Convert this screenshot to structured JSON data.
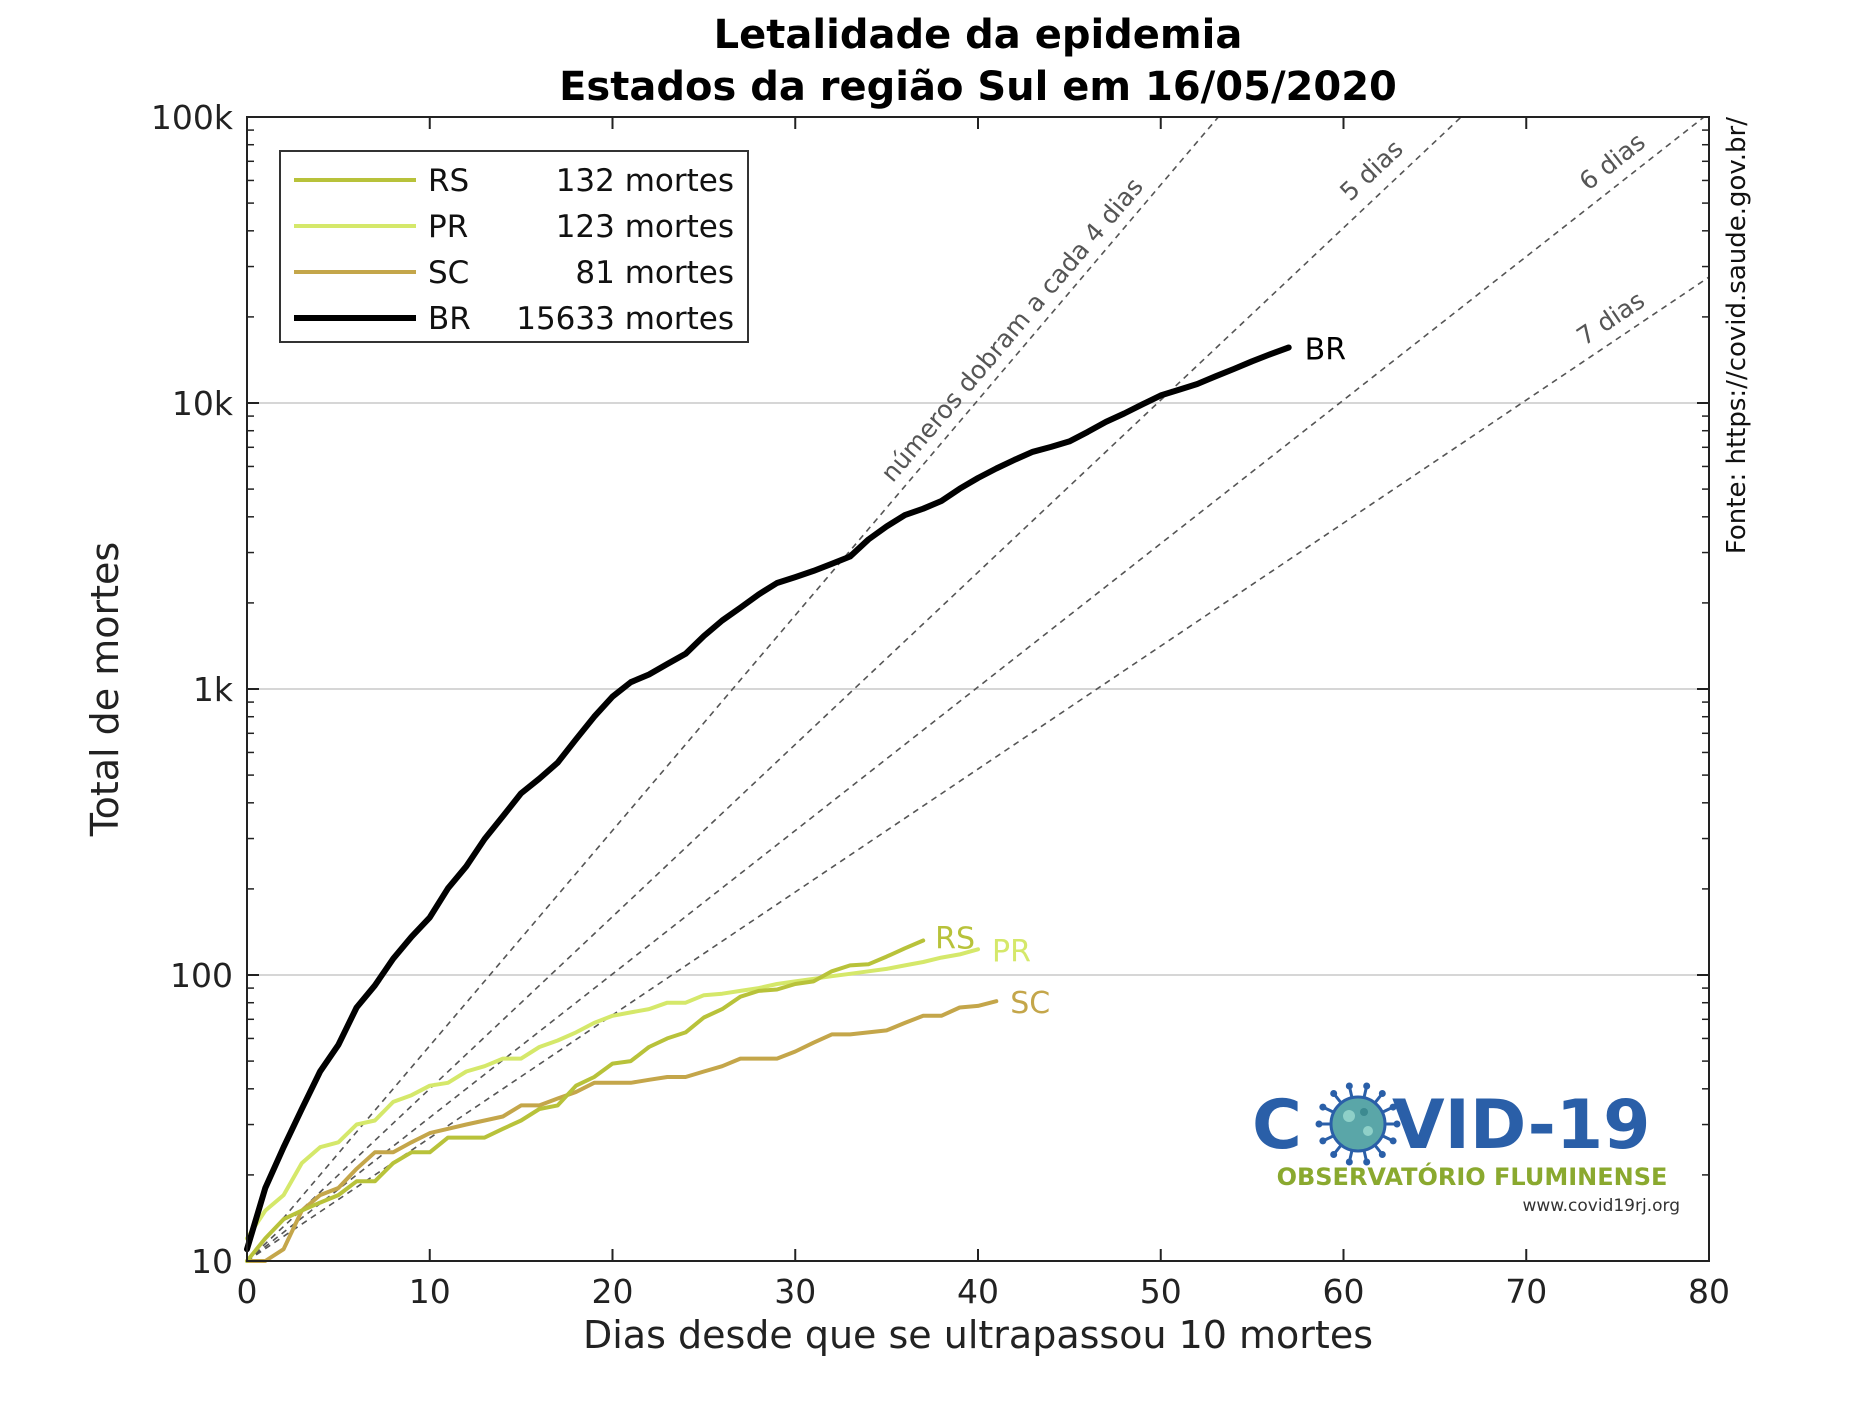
{
  "chart_data": {
    "type": "line",
    "title": [
      "Letalidade da epidemia",
      "Estados da região Sul em 16/05/2020"
    ],
    "xlabel": "Dias desde que se ultrapassou 10 mortes",
    "ylabel": "Total de mortes",
    "xlim": [
      0,
      80
    ],
    "ylim": [
      10,
      100000
    ],
    "yscale": "log",
    "x_ticks": [
      "0",
      "10",
      "20",
      "30",
      "40",
      "50",
      "60",
      "70",
      "80"
    ],
    "x_tick_values": [
      0,
      10,
      20,
      30,
      40,
      50,
      60,
      70,
      80
    ],
    "y_ticks": [
      "10",
      "100",
      "1k",
      "10k",
      "100k"
    ],
    "y_tick_values": [
      10,
      100,
      1000,
      10000,
      100000
    ],
    "grid": "horizontal major",
    "legend_position": "top-left",
    "series": [
      {
        "name": "RS",
        "legend_value": "132 mortes",
        "end_label": "RS",
        "color": "#b8c23a",
        "x": [
          0,
          1,
          2,
          3,
          4,
          5,
          6,
          7,
          8,
          9,
          10,
          11,
          12,
          13,
          14,
          15,
          16,
          17,
          18,
          19,
          20,
          21,
          22,
          23,
          24,
          25,
          26,
          27,
          28,
          29,
          30,
          31,
          32,
          33,
          34,
          35,
          36,
          37
        ],
        "y": [
          10,
          12,
          14,
          15,
          16,
          17,
          19,
          19,
          22,
          24,
          24,
          27,
          27,
          27,
          29,
          31,
          34,
          35,
          41,
          44,
          49,
          50,
          56,
          60,
          63,
          71,
          76,
          84,
          88,
          89,
          93,
          95,
          103,
          108,
          109,
          116,
          124,
          132
        ]
      },
      {
        "name": "PR",
        "legend_value": "123 mortes",
        "end_label": "PR",
        "color": "#d5e86a",
        "x": [
          0,
          1,
          2,
          3,
          4,
          5,
          6,
          7,
          8,
          9,
          10,
          11,
          12,
          13,
          14,
          15,
          16,
          17,
          18,
          19,
          20,
          21,
          22,
          23,
          24,
          25,
          26,
          27,
          28,
          29,
          30,
          31,
          32,
          33,
          34,
          35,
          36,
          37,
          38,
          39,
          40
        ],
        "y": [
          12,
          15,
          17,
          22,
          25,
          26,
          30,
          31,
          36,
          38,
          41,
          42,
          46,
          48,
          51,
          51,
          56,
          59,
          63,
          68,
          72,
          74,
          76,
          80,
          80,
          85,
          86,
          88,
          90,
          93,
          95,
          97,
          99,
          101,
          103,
          105,
          108,
          111,
          115,
          118,
          123
        ]
      },
      {
        "name": "SC",
        "legend_value": "81 mortes",
        "end_label": "SC",
        "color": "#c4a64a",
        "x": [
          0,
          1,
          2,
          3,
          4,
          5,
          6,
          7,
          8,
          9,
          10,
          11,
          12,
          13,
          14,
          15,
          16,
          17,
          18,
          19,
          20,
          21,
          22,
          23,
          24,
          25,
          26,
          27,
          28,
          29,
          30,
          31,
          32,
          33,
          34,
          35,
          36,
          37,
          38,
          39,
          40,
          41
        ],
        "y": [
          10,
          10,
          11,
          15,
          17,
          18,
          21,
          24,
          24,
          26,
          28,
          29,
          30,
          31,
          32,
          35,
          35,
          37,
          39,
          42,
          42,
          42,
          43,
          44,
          44,
          46,
          48,
          51,
          51,
          51,
          54,
          58,
          62,
          62,
          63,
          64,
          68,
          72,
          72,
          77,
          78,
          81
        ]
      },
      {
        "name": "BR",
        "legend_value": "15633 mortes",
        "end_label": "BR",
        "color": "#000000",
        "x": [
          0,
          1,
          2,
          3,
          4,
          5,
          6,
          7,
          8,
          9,
          10,
          11,
          12,
          13,
          14,
          15,
          16,
          17,
          18,
          19,
          20,
          21,
          22,
          23,
          24,
          25,
          26,
          27,
          28,
          29,
          30,
          31,
          32,
          33,
          34,
          35,
          36,
          37,
          38,
          39,
          40,
          41,
          42,
          43,
          44,
          45,
          46,
          47,
          48,
          49,
          50,
          51,
          52,
          53,
          54,
          55,
          56,
          57
        ],
        "y": [
          11,
          18,
          25,
          34,
          46,
          57,
          77,
          92,
          114,
          136,
          159,
          201,
          240,
          299,
          359,
          432,
          486,
          553,
          667,
          800,
          941,
          1056,
          1124,
          1223,
          1328,
          1532,
          1736,
          1924,
          2141,
          2347,
          2462,
          2587,
          2741,
          2906,
          3331,
          3704,
          4057,
          4271,
          4543,
          5017,
          5466,
          5901,
          6329,
          6750,
          7025,
          7343,
          7921,
          8588,
          9190,
          9897,
          10627,
          11123,
          11653,
          12400,
          13149,
          13993,
          14817,
          15633
        ]
      }
    ],
    "reference_lines": [
      {
        "label": "números dobram a cada 4 dias",
        "doubling_days": 4
      },
      {
        "label": "5 dias",
        "doubling_days": 5
      },
      {
        "label": "6 dias",
        "doubling_days": 6
      },
      {
        "label": "7 dias",
        "doubling_days": 7
      }
    ],
    "source_note": "Fonte: https://covid.saude.gov.br/"
  },
  "logo": {
    "title_part1": "C",
    "title_part2": "VID-19",
    "subtitle": "OBSERVATÓRIO FLUMINENSE",
    "url": "www.covid19rj.org",
    "title_color": "#2a5fa8",
    "subtitle_color": "#8aa92f",
    "virus_color": "#5aa6a8"
  }
}
